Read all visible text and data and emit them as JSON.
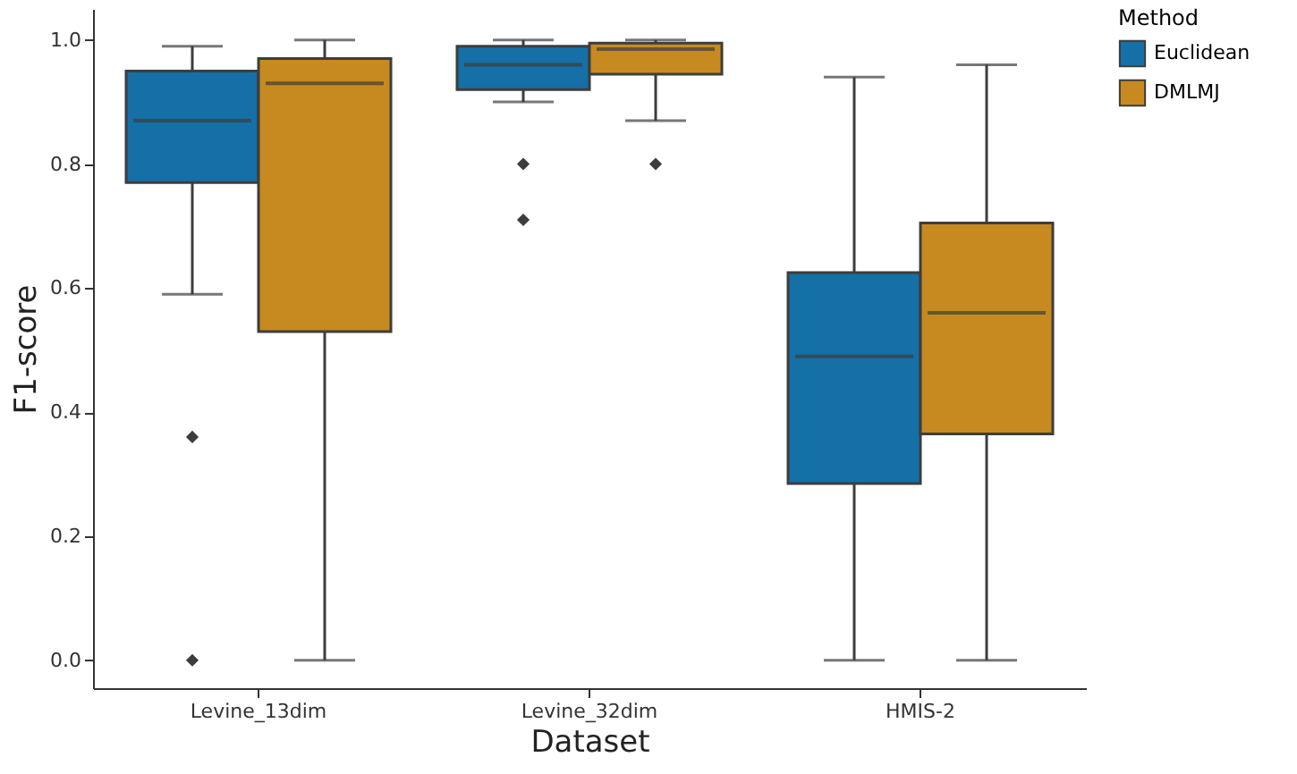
{
  "chart_data": {
    "type": "box",
    "xlabel": "Dataset",
    "ylabel": "F1-score",
    "legend_title": "Method",
    "legend": "right",
    "categories": [
      "Levine_13dim",
      "Levine_32dim",
      "HMIS-2"
    ],
    "ylim": [
      -0.045,
      1.05
    ],
    "yticks": [
      {
        "value": 0,
        "label": "0.0"
      },
      0.2,
      0.4,
      0.6,
      0.8,
      {
        "value": 1,
        "label": "1.0"
      }
    ],
    "grid": false,
    "marker": "diamond",
    "series": [
      {
        "name": "Euclidean",
        "color": "#1470a6",
        "boxes": [
          {
            "low": 0.59,
            "q1": 0.77,
            "median": 0.87,
            "q3": 0.95,
            "high": 0.99,
            "outliers": [
              0.36,
              0
            ]
          },
          {
            "low": 0.9,
            "q1": 0.92,
            "median": 0.96,
            "q3": 0.99,
            "high": 1.0,
            "outliers": [
              0.8,
              0.71
            ]
          },
          {
            "low": 0,
            "q1": 0.285,
            "median": 0.49,
            "q3": 0.625,
            "high": 0.94
          }
        ]
      },
      {
        "name": "DMLMJ",
        "color": "#c68a20",
        "boxes": [
          {
            "low": 0,
            "q1": 0.53,
            "median": 0.93,
            "q3": 0.97,
            "high": 1.0
          },
          {
            "low": 0.87,
            "q1": 0.945,
            "median": 0.985,
            "q3": 0.995,
            "high": 1.0,
            "outliers": [
              0.8
            ]
          },
          {
            "low": 0,
            "q1": 0.365,
            "median": 0.56,
            "q3": 0.705,
            "high": 0.96
          }
        ]
      }
    ]
  }
}
